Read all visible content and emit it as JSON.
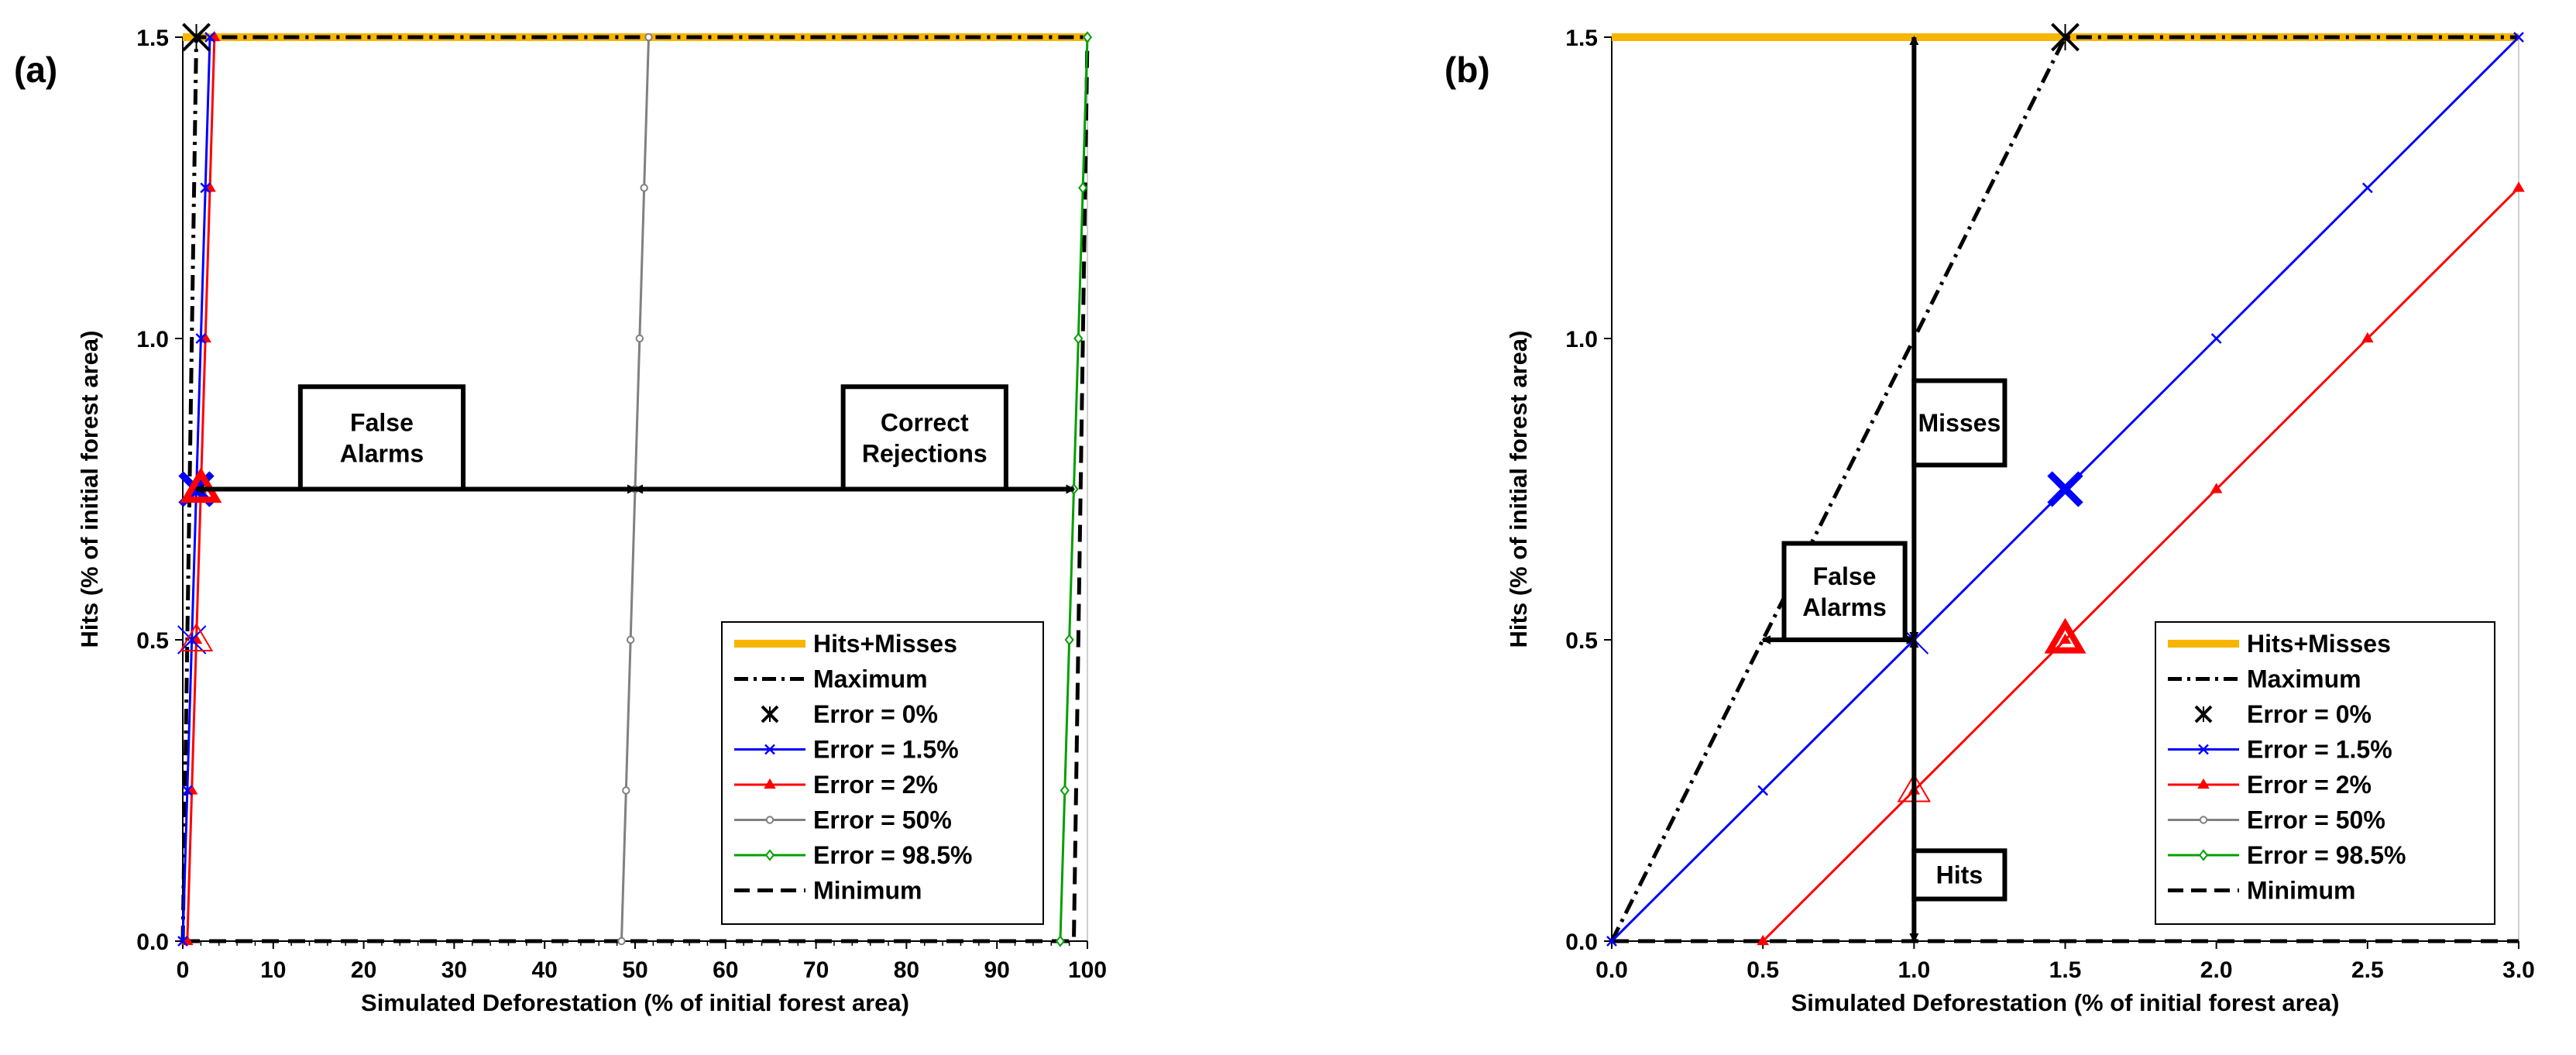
{
  "chart_data": [
    {
      "panel_label": "(a)",
      "type": "line",
      "xlabel": "Simulated Deforestation (% of initial forest area)",
      "ylabel": "Hits (% of initial forest area)",
      "xlim": [
        0,
        100
      ],
      "ylim": [
        0,
        1.5
      ],
      "x_ticks": [
        "0",
        "10",
        "20",
        "30",
        "40",
        "50",
        "60",
        "70",
        "80",
        "90",
        "100"
      ],
      "y_ticks": [
        "0.0",
        "0.5",
        "1.0",
        "1.5"
      ],
      "series": [
        {
          "name": "Hits+Misses",
          "color": "#f7b500",
          "style": "thick",
          "points": [
            [
              0,
              1.5
            ],
            [
              100,
              1.5
            ]
          ]
        },
        {
          "name": "Maximum",
          "color": "#000000",
          "style": "dashdot",
          "points": [
            [
              0,
              0
            ],
            [
              1.5,
              1.5
            ],
            [
              100,
              1.5
            ]
          ]
        },
        {
          "name": "Error = 0%",
          "color": "#000000",
          "style": "xmarker",
          "points": [
            [
              1.5,
              1.5
            ]
          ]
        },
        {
          "name": "Error = 1.5%",
          "color": "#0000ff",
          "style": "marker_x",
          "points": [
            [
              0,
              0
            ],
            [
              0.5,
              0.25
            ],
            [
              1,
              0.5
            ],
            [
              1.5,
              0.75
            ],
            [
              2,
              1.0
            ],
            [
              2.5,
              1.25
            ],
            [
              3,
              1.5
            ]
          ]
        },
        {
          "name": "Error = 2%",
          "color": "#ff0000",
          "style": "marker_tri",
          "points": [
            [
              0.5,
              0
            ],
            [
              1,
              0.25
            ],
            [
              1.5,
              0.5
            ],
            [
              2,
              0.75
            ],
            [
              2.5,
              1.0
            ],
            [
              3,
              1.25
            ],
            [
              3.5,
              1.5
            ]
          ]
        },
        {
          "name": "Error = 50%",
          "color": "#808080",
          "style": "marker_circle",
          "points": [
            [
              48.5,
              0
            ],
            [
              49,
              0.25
            ],
            [
              49.5,
              0.5
            ],
            [
              50,
              0.75
            ],
            [
              50.5,
              1.0
            ],
            [
              51,
              1.25
            ],
            [
              51.5,
              1.5
            ]
          ]
        },
        {
          "name": "Error = 98.5%",
          "color": "#00a000",
          "style": "marker_diamond",
          "points": [
            [
              97,
              0
            ],
            [
              97.5,
              0.25
            ],
            [
              98,
              0.5
            ],
            [
              98.5,
              0.75
            ],
            [
              99,
              1.0
            ],
            [
              99.5,
              1.25
            ],
            [
              100,
              1.5
            ]
          ]
        },
        {
          "name": "Minimum",
          "color": "#000000",
          "style": "dash",
          "points": [
            [
              0,
              0
            ],
            [
              98.5,
              0
            ],
            [
              100,
              1.5
            ]
          ]
        }
      ],
      "highlight_markers": [
        {
          "series": "Error = 1.5%",
          "x": 1,
          "y": 0.5,
          "size": "small"
        },
        {
          "series": "Error = 2%",
          "x": 1.5,
          "y": 0.5,
          "size": "small"
        },
        {
          "series": "Error = 1.5%",
          "x": 1.5,
          "y": 0.75,
          "size": "large"
        },
        {
          "series": "Error = 2%",
          "x": 2,
          "y": 0.75,
          "size": "large"
        }
      ],
      "annotations": [
        {
          "text_lines": [
            "False",
            "Alarms"
          ],
          "arrow": {
            "from": [
              1.5,
              0.75
            ],
            "to": [
              50,
              0.75
            ]
          },
          "box_x": [
            13,
            31
          ],
          "box_y": [
            0.92,
            0.75
          ]
        },
        {
          "text_lines": [
            "Correct",
            "Rejections"
          ],
          "arrow": {
            "from": [
              50,
              0.75
            ],
            "to": [
              98.5,
              0.75
            ]
          },
          "box_x": [
            73,
            91
          ],
          "box_y": [
            0.92,
            0.75
          ]
        }
      ],
      "legend": {
        "position": "bottom-right",
        "entries": [
          "Hits+Misses",
          "Maximum",
          "Error = 0%",
          "Error = 1.5%",
          "Error = 2%",
          "Error = 50%",
          "Error = 98.5%",
          "Minimum"
        ]
      }
    },
    {
      "panel_label": "(b)",
      "type": "line",
      "xlabel": "Simulated Deforestation (% of initial forest area)",
      "ylabel": "Hits (% of initial forest area)",
      "xlim": [
        0,
        3
      ],
      "ylim": [
        0,
        1.5
      ],
      "x_ticks": [
        "0.0",
        "0.5",
        "1.0",
        "1.5",
        "2.0",
        "2.5",
        "3.0"
      ],
      "y_ticks": [
        "0.0",
        "0.5",
        "1.0",
        "1.5"
      ],
      "series": [
        {
          "name": "Hits+Misses",
          "color": "#f7b500",
          "style": "thick",
          "points": [
            [
              0,
              1.5
            ],
            [
              3,
              1.5
            ]
          ]
        },
        {
          "name": "Maximum",
          "color": "#000000",
          "style": "dashdot",
          "points": [
            [
              0,
              0
            ],
            [
              1.5,
              1.5
            ],
            [
              3,
              1.5
            ]
          ]
        },
        {
          "name": "Error = 0%",
          "color": "#000000",
          "style": "xmarker",
          "points": [
            [
              1.5,
              1.5
            ]
          ]
        },
        {
          "name": "Error = 1.5%",
          "color": "#0000ff",
          "style": "marker_x",
          "points": [
            [
              0,
              0
            ],
            [
              0.5,
              0.25
            ],
            [
              1,
              0.5
            ],
            [
              1.5,
              0.75
            ],
            [
              2,
              1.0
            ],
            [
              2.5,
              1.25
            ],
            [
              3,
              1.5
            ]
          ]
        },
        {
          "name": "Error = 2%",
          "color": "#ff0000",
          "style": "marker_tri",
          "points": [
            [
              0.5,
              0
            ],
            [
              1,
              0.25
            ],
            [
              1.5,
              0.5
            ],
            [
              2,
              0.75
            ],
            [
              2.5,
              1.0
            ],
            [
              3,
              1.25
            ]
          ]
        },
        {
          "name": "Error = 50%",
          "color": "#808080",
          "style": "marker_circle",
          "points": []
        },
        {
          "name": "Error = 98.5%",
          "color": "#00a000",
          "style": "marker_diamond",
          "points": []
        },
        {
          "name": "Minimum",
          "color": "#000000",
          "style": "dash",
          "points": [
            [
              0,
              0
            ],
            [
              3,
              0
            ]
          ]
        }
      ],
      "highlight_markers": [
        {
          "series": "Error = 1.5%",
          "x": 1,
          "y": 0.5,
          "size": "small"
        },
        {
          "series": "Error = 2%",
          "x": 1,
          "y": 0.25,
          "size": "small"
        },
        {
          "series": "Error = 1.5%",
          "x": 1.5,
          "y": 0.75,
          "size": "large"
        },
        {
          "series": "Error = 2%",
          "x": 1.5,
          "y": 0.5,
          "size": "large"
        }
      ],
      "annotations": [
        {
          "text_lines": [
            "Misses"
          ],
          "arrow": {
            "from": [
              1,
              0.5
            ],
            "to": [
              1,
              1.5
            ]
          },
          "box_x": [
            1.0,
            1.3
          ],
          "box_y": [
            0.93,
            0.79
          ]
        },
        {
          "text_lines": [
            "Hits"
          ],
          "arrow": {
            "from": [
              1,
              0
            ],
            "to": [
              1,
              0.5
            ]
          },
          "box_x": [
            1.0,
            1.3
          ],
          "box_y": [
            0.15,
            0.07
          ]
        },
        {
          "text_lines": [
            "False",
            "Alarms"
          ],
          "arrow": {
            "from": [
              0.5,
              0.5
            ],
            "to": [
              1,
              0.5
            ]
          },
          "box_x": [
            0.57,
            0.97
          ],
          "box_y": [
            0.66,
            0.5
          ]
        }
      ],
      "legend": {
        "position": "bottom-right",
        "entries": [
          "Hits+Misses",
          "Maximum",
          "Error = 0%",
          "Error = 1.5%",
          "Error = 2%",
          "Error = 50%",
          "Error = 98.5%",
          "Minimum"
        ]
      }
    }
  ]
}
